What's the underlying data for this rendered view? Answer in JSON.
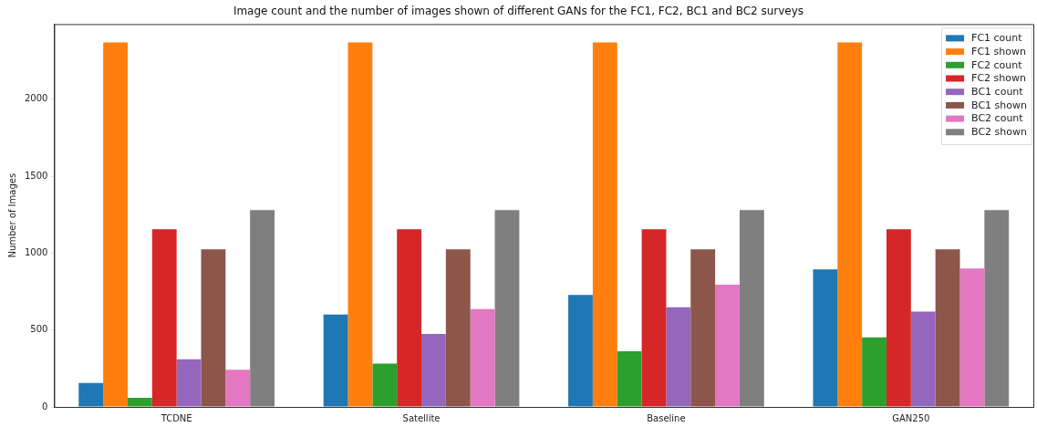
{
  "chart_data": {
    "type": "bar",
    "title": "Image count and the number of images shown of different GANs for the FC1, FC2, BC1 and BC2 surveys",
    "ylabel": "Number of Images",
    "categories": [
      "TCDNE",
      "Satellite",
      "Baseline",
      "GAN250"
    ],
    "series": [
      {
        "name": "FC1 count",
        "color": "#1f77b4",
        "values": [
          156,
          601,
          728,
          894
        ]
      },
      {
        "name": "FC1 shown",
        "color": "#ff7f0e",
        "values": [
          2369,
          2369,
          2369,
          2369
        ]
      },
      {
        "name": "FC2 count",
        "color": "#2ca02c",
        "values": [
          60,
          281,
          361,
          452
        ]
      },
      {
        "name": "FC2 shown",
        "color": "#d62728",
        "values": [
          1155,
          1155,
          1155,
          1155
        ]
      },
      {
        "name": "BC1 count",
        "color": "#9467bd",
        "values": [
          310,
          474,
          648,
          620
        ]
      },
      {
        "name": "BC1 shown",
        "color": "#8c564b",
        "values": [
          1024,
          1024,
          1024,
          1024
        ]
      },
      {
        "name": "BC2 count",
        "color": "#e377c2",
        "values": [
          242,
          636,
          794,
          900
        ]
      },
      {
        "name": "BC2 shown",
        "color": "#7f7f7f",
        "values": [
          1280,
          1280,
          1280,
          1280
        ]
      }
    ],
    "ylim": [
      0,
      2488
    ],
    "yticks": [
      0,
      500,
      1000,
      1500,
      2000
    ],
    "grid": false,
    "legend": "top right"
  }
}
